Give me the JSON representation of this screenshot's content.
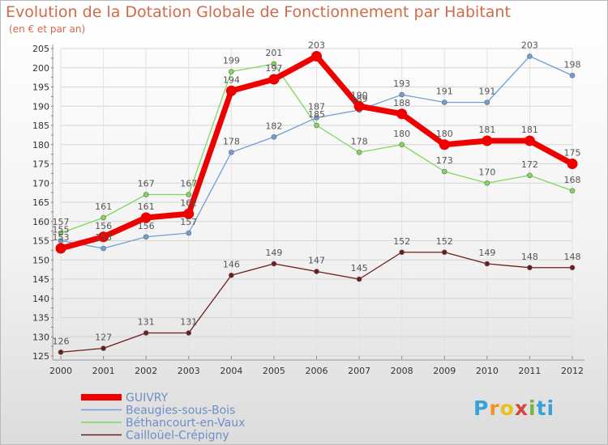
{
  "chart_data": {
    "type": "line",
    "title": "Evolution de la Dotation Globale de Fonctionnement par Habitant",
    "subtitle": "(en € et par an)",
    "xlabel": "",
    "ylabel": "",
    "ylim": [
      125,
      205
    ],
    "yticks": [
      125,
      130,
      135,
      140,
      145,
      150,
      155,
      160,
      165,
      170,
      175,
      180,
      185,
      190,
      195,
      200,
      205
    ],
    "categories": [
      "2000",
      "2001",
      "2002",
      "2003",
      "2004",
      "2005",
      "2006",
      "2007",
      "2008",
      "2009",
      "2010",
      "2011",
      "2012"
    ],
    "legend_position": "bottom-left",
    "series": [
      {
        "name": "Cailloüel-Crépigny",
        "color": "#6b1d1d",
        "values": [
          126,
          127,
          131,
          131,
          146,
          149,
          147,
          145,
          152,
          152,
          149,
          148,
          148
        ]
      },
      {
        "name": "Béthancourt-en-Vaux",
        "color": "#7fd85a",
        "values": [
          157,
          161,
          167,
          167,
          199,
          201,
          185,
          178,
          180,
          173,
          170,
          172,
          168
        ]
      },
      {
        "name": "Beaugies-sous-Bois",
        "color": "#6f9fd3",
        "values": [
          155,
          153,
          156,
          157,
          178,
          182,
          187,
          189,
          193,
          191,
          191,
          203,
          198
        ]
      },
      {
        "name": "GUIVRY",
        "color": "#ee0000",
        "values": [
          153,
          156,
          161,
          162,
          194,
          197,
          203,
          190,
          188,
          180,
          181,
          181,
          175
        ]
      }
    ],
    "legend_order": [
      "GUIVRY",
      "Beaugies-sous-Bois",
      "Béthancourt-en-Vaux",
      "Cailloüel-Crépigny"
    ]
  },
  "logo": {
    "text": [
      "P",
      "r",
      "o",
      "x",
      "i",
      "t",
      "i"
    ],
    "label": "Proxiti"
  }
}
